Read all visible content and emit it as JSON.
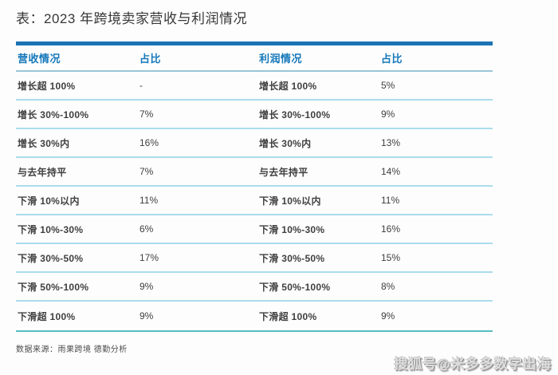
{
  "page": {
    "title": "表：2023 年跨境卖家营收与利润情况",
    "source_note": "数据来源：雨果跨境 德勤分析",
    "watermark": "搜狐号@米多多数字出海"
  },
  "table": {
    "columns": [
      "营收情况",
      "占比",
      "利润情况",
      "占比"
    ],
    "rows": [
      {
        "revenue": "增长超 100%",
        "revenue_share": "-",
        "profit": "增长超 100%",
        "profit_share": "5%"
      },
      {
        "revenue": "增长 30%-100%",
        "revenue_share": "7%",
        "profit": "增长 30%-100%",
        "profit_share": "9%"
      },
      {
        "revenue": "增长 30%内",
        "revenue_share": "16%",
        "profit": "增长 30%内",
        "profit_share": "13%"
      },
      {
        "revenue": "与去年持平",
        "revenue_share": "7%",
        "profit": "与去年持平",
        "profit_share": "14%"
      },
      {
        "revenue": "下滑 10%以内",
        "revenue_share": "11%",
        "profit": "下滑 10%以内",
        "profit_share": "11%"
      },
      {
        "revenue": "下滑 10%-30%",
        "revenue_share": "6%",
        "profit": "下滑 10%-30%",
        "profit_share": "16%"
      },
      {
        "revenue": "下滑 30%-50%",
        "revenue_share": "17%",
        "profit": "下滑 30%-50%",
        "profit_share": "15%"
      },
      {
        "revenue": "下滑 50%-100%",
        "revenue_share": "9%",
        "profit": "下滑 50%-100%",
        "profit_share": "8%"
      },
      {
        "revenue": "下滑超 100%",
        "revenue_share": "9%",
        "profit": "下滑超 100%",
        "profit_share": "9%"
      }
    ]
  },
  "colors": {
    "header_bar": "#1c73b5",
    "header_text": "#1578ba",
    "header_divider": "#9cc4d6",
    "row_divider": "#abdcec",
    "bottom_line": "#58bdbd"
  }
}
